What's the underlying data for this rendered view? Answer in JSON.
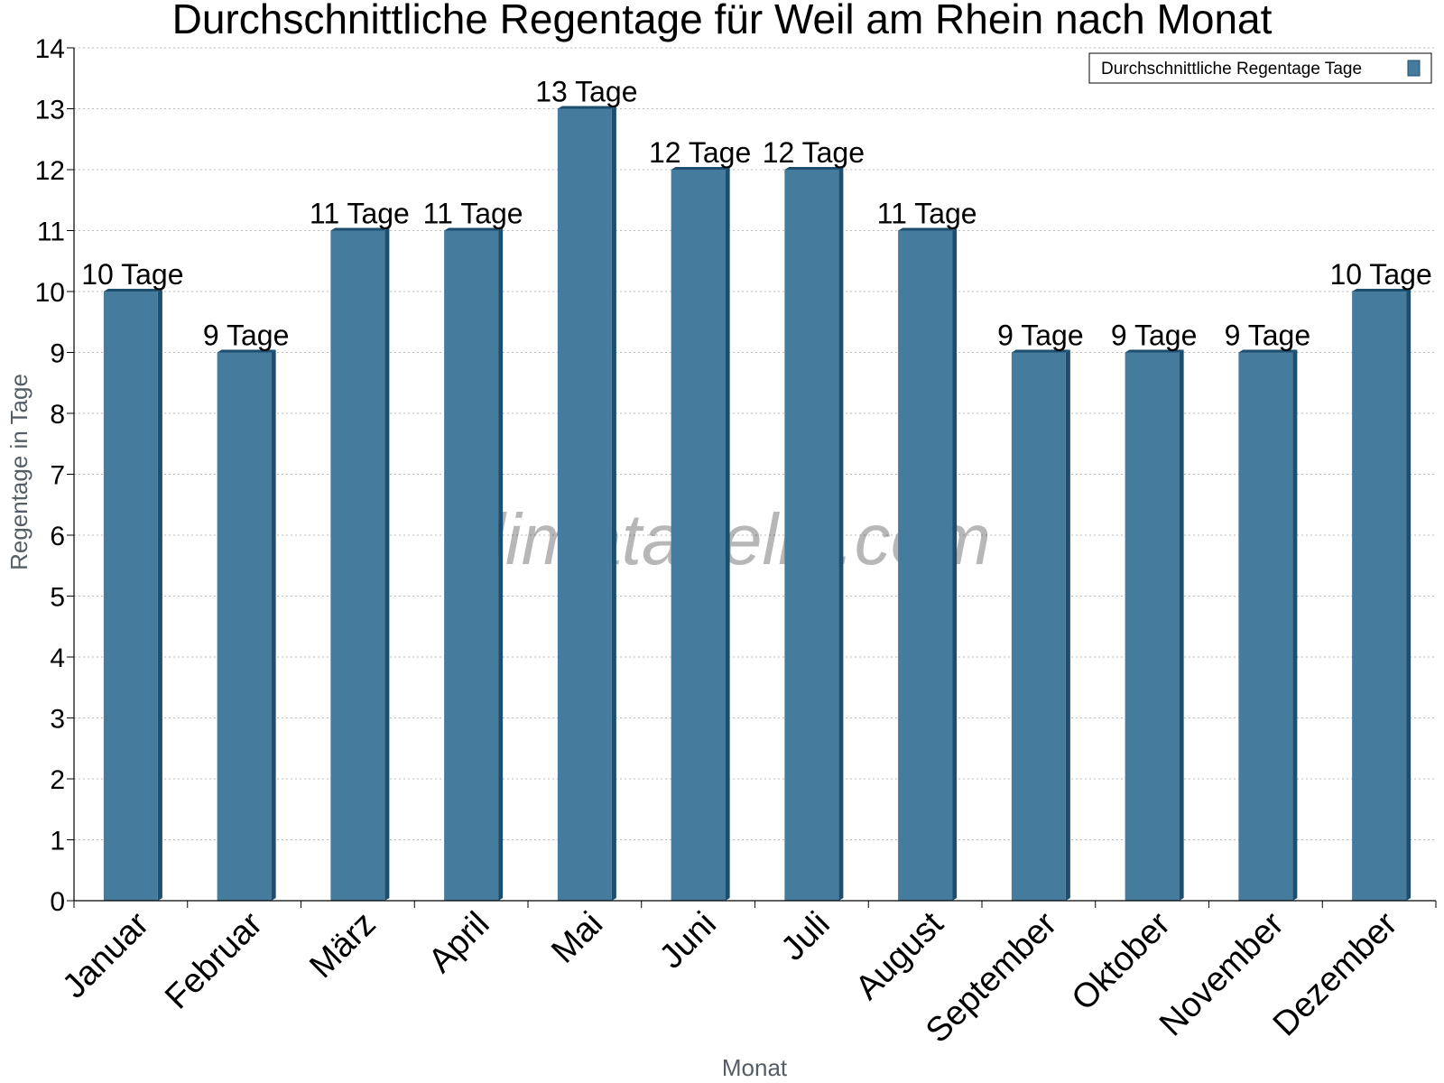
{
  "chart_data": {
    "type": "bar",
    "title": "Durchschnittliche Regentage für Weil am Rhein nach Monat",
    "xlabel": "Monat",
    "ylabel": "Regentage in Tage",
    "ylim": [
      0,
      14
    ],
    "y_ticks": [
      0,
      1,
      2,
      3,
      4,
      5,
      6,
      7,
      8,
      9,
      10,
      11,
      12,
      13,
      14
    ],
    "grid": true,
    "legend_position": "top-right",
    "categories": [
      "Januar",
      "Februar",
      "März",
      "April",
      "Mai",
      "Juni",
      "Juli",
      "August",
      "September",
      "Oktober",
      "November",
      "Dezember"
    ],
    "series": [
      {
        "name": "Durchschnittliche Regentage Tage",
        "values": [
          10,
          9,
          11,
          11,
          13,
          12,
          12,
          11,
          9,
          9,
          9,
          10
        ],
        "labels": [
          "10 Tage",
          "9 Tage",
          "11 Tage",
          "11 Tage",
          "13 Tage",
          "12 Tage",
          "12 Tage",
          "11 Tage",
          "9 Tage",
          "9 Tage",
          "9 Tage",
          "10 Tage"
        ],
        "color": "#457b9d",
        "shade_color": "#1d4e6e"
      }
    ],
    "watermark": "klimatabelle.com"
  }
}
